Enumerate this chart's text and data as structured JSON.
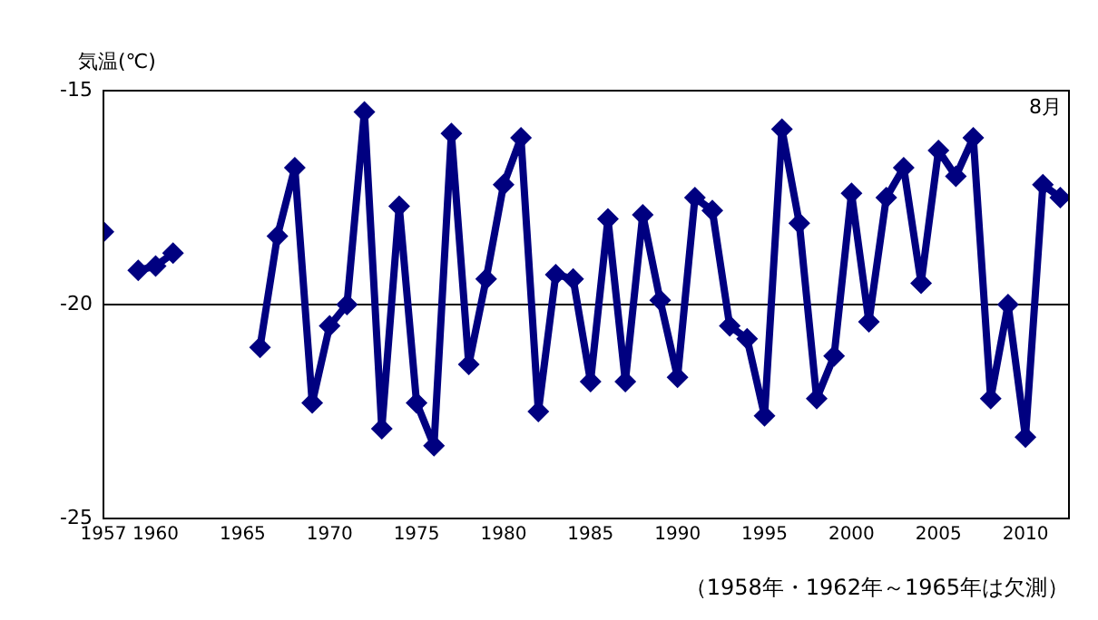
{
  "chart_data": {
    "type": "line",
    "ylabel": "気温(℃)",
    "x": [
      1957,
      1958,
      1959,
      1960,
      1961,
      1962,
      1963,
      1964,
      1965,
      1966,
      1967,
      1968,
      1969,
      1970,
      1971,
      1972,
      1973,
      1974,
      1975,
      1976,
      1977,
      1978,
      1979,
      1980,
      1981,
      1982,
      1983,
      1984,
      1985,
      1986,
      1987,
      1988,
      1989,
      1990,
      1991,
      1992,
      1993,
      1994,
      1995,
      1996,
      1997,
      1998,
      1999,
      2000,
      2001,
      2002,
      2003,
      2004,
      2005,
      2006,
      2007,
      2008,
      2009,
      2010,
      2011,
      2012
    ],
    "series": [
      {
        "color": "#000080",
        "values": [
          -18.3,
          null,
          -19.2,
          -19.1,
          -18.8,
          null,
          null,
          null,
          null,
          -21.0,
          -18.4,
          -16.8,
          -22.3,
          -20.5,
          -20.0,
          -15.5,
          -22.9,
          -17.7,
          -22.3,
          -23.3,
          -16.0,
          -21.4,
          -19.4,
          -17.2,
          -16.1,
          -22.5,
          -19.3,
          -19.4,
          -21.8,
          -18.0,
          -21.8,
          -17.9,
          -19.9,
          -21.7,
          -17.5,
          -17.8,
          -20.5,
          -20.8,
          -22.6,
          -15.9,
          -18.1,
          -22.2,
          -21.2,
          -17.4,
          -20.4,
          -17.5,
          -16.8,
          -19.5,
          -16.4,
          -17.0,
          -16.1,
          -22.2,
          -20.0,
          -23.1,
          -17.2,
          -17.5
        ]
      }
    ],
    "xlim": [
      1957,
      2012.5
    ],
    "xticks": [
      1957,
      1960,
      1965,
      1970,
      1975,
      1980,
      1985,
      1990,
      1995,
      2000,
      2005,
      2010
    ],
    "ylim": [
      -25,
      -15
    ],
    "yticks": [
      -25,
      -20,
      -15
    ],
    "grid": "y",
    "legend": false,
    "marker": "diamond",
    "line_style": "solid",
    "annotations": [
      "8月",
      "（1958年・1962年～1965年は欠測）"
    ]
  }
}
